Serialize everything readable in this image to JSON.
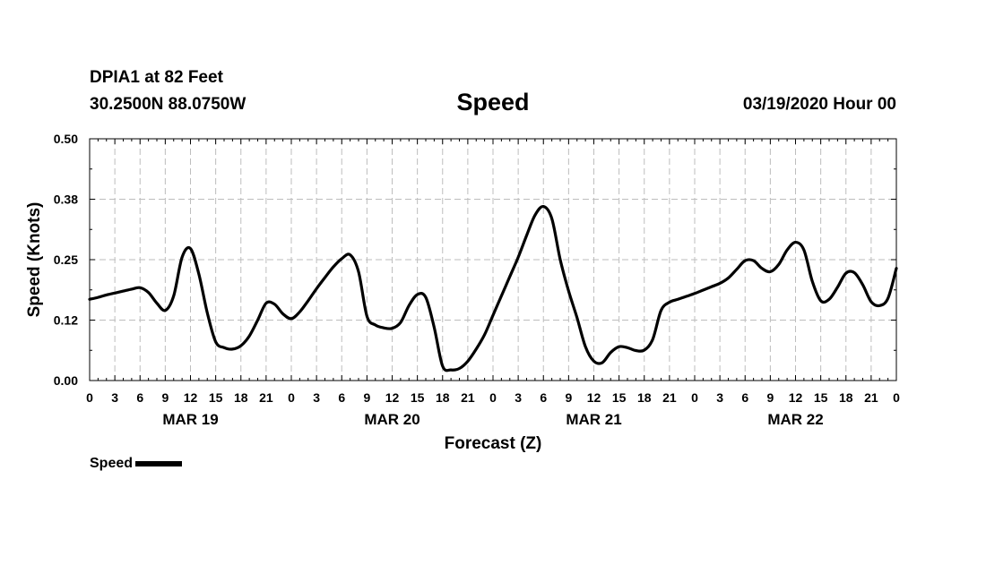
{
  "header": {
    "station": "DPIA1 at 82 Feet",
    "coords": "30.2500N 88.0750W",
    "title": "Speed",
    "issued": "03/19/2020 Hour 00"
  },
  "legend": {
    "label": "Speed",
    "color": "#000000"
  },
  "chart_data": {
    "type": "line",
    "title": "Speed",
    "xlabel": "Forecast (Z)",
    "ylabel": "Speed (Knots)",
    "ylim": [
      0,
      0.5
    ],
    "yticks": [
      "0.00",
      "0.12",
      "0.25",
      "0.38",
      "0.50"
    ],
    "xlim_hours": [
      0,
      96
    ],
    "xtick_step_hours": 3,
    "xtick_labels": [
      "0",
      "3",
      "6",
      "9",
      "12",
      "15",
      "18",
      "21",
      "0",
      "3",
      "6",
      "9",
      "12",
      "15",
      "18",
      "21",
      "0",
      "3",
      "6",
      "9",
      "12",
      "15",
      "18",
      "21",
      "0",
      "3",
      "6",
      "9",
      "12",
      "15",
      "18",
      "21",
      "0"
    ],
    "day_labels": [
      "MAR 19",
      "MAR 20",
      "MAR 21",
      "MAR 22"
    ],
    "grid": true,
    "series": [
      {
        "name": "Speed",
        "color": "#000000",
        "points": [
          [
            0,
            0.168
          ],
          [
            1,
            0.172
          ],
          [
            2,
            0.177
          ],
          [
            3,
            0.181
          ],
          [
            4,
            0.185
          ],
          [
            5,
            0.189
          ],
          [
            6,
            0.192
          ],
          [
            7,
            0.182
          ],
          [
            8,
            0.16
          ],
          [
            9,
            0.145
          ],
          [
            10,
            0.175
          ],
          [
            11,
            0.255
          ],
          [
            12,
            0.273
          ],
          [
            13,
            0.22
          ],
          [
            14,
            0.14
          ],
          [
            15,
            0.08
          ],
          [
            16,
            0.068
          ],
          [
            17,
            0.065
          ],
          [
            18,
            0.072
          ],
          [
            19,
            0.092
          ],
          [
            20,
            0.125
          ],
          [
            21,
            0.16
          ],
          [
            22,
            0.158
          ],
          [
            23,
            0.138
          ],
          [
            24,
            0.128
          ],
          [
            25,
            0.142
          ],
          [
            26,
            0.165
          ],
          [
            27,
            0.19
          ],
          [
            28,
            0.213
          ],
          [
            29,
            0.235
          ],
          [
            30,
            0.252
          ],
          [
            31,
            0.26
          ],
          [
            32,
            0.225
          ],
          [
            33,
            0.133
          ],
          [
            34,
            0.115
          ],
          [
            35,
            0.109
          ],
          [
            36,
            0.108
          ],
          [
            37,
            0.12
          ],
          [
            38,
            0.155
          ],
          [
            39,
            0.178
          ],
          [
            40,
            0.172
          ],
          [
            41,
            0.11
          ],
          [
            42,
            0.03
          ],
          [
            43,
            0.022
          ],
          [
            44,
            0.025
          ],
          [
            45,
            0.04
          ],
          [
            46,
            0.065
          ],
          [
            47,
            0.095
          ],
          [
            48,
            0.135
          ],
          [
            49,
            0.175
          ],
          [
            50,
            0.215
          ],
          [
            51,
            0.255
          ],
          [
            52,
            0.3
          ],
          [
            53,
            0.342
          ],
          [
            54,
            0.36
          ],
          [
            55,
            0.335
          ],
          [
            56,
            0.25
          ],
          [
            57,
            0.185
          ],
          [
            58,
            0.13
          ],
          [
            59,
            0.07
          ],
          [
            60,
            0.04
          ],
          [
            61,
            0.037
          ],
          [
            62,
            0.058
          ],
          [
            63,
            0.07
          ],
          [
            64,
            0.068
          ],
          [
            65,
            0.062
          ],
          [
            66,
            0.063
          ],
          [
            67,
            0.085
          ],
          [
            68,
            0.145
          ],
          [
            69,
            0.162
          ],
          [
            70,
            0.168
          ],
          [
            71,
            0.174
          ],
          [
            72,
            0.18
          ],
          [
            73,
            0.187
          ],
          [
            74,
            0.194
          ],
          [
            75,
            0.201
          ],
          [
            76,
            0.212
          ],
          [
            77,
            0.23
          ],
          [
            78,
            0.248
          ],
          [
            79,
            0.248
          ],
          [
            80,
            0.232
          ],
          [
            81,
            0.225
          ],
          [
            82,
            0.24
          ],
          [
            83,
            0.27
          ],
          [
            84,
            0.286
          ],
          [
            85,
            0.27
          ],
          [
            86,
            0.205
          ],
          [
            87,
            0.165
          ],
          [
            88,
            0.168
          ],
          [
            89,
            0.193
          ],
          [
            90,
            0.222
          ],
          [
            91,
            0.223
          ],
          [
            92,
            0.198
          ],
          [
            93,
            0.163
          ],
          [
            94,
            0.155
          ],
          [
            95,
            0.17
          ],
          [
            96,
            0.232
          ]
        ]
      }
    ]
  }
}
